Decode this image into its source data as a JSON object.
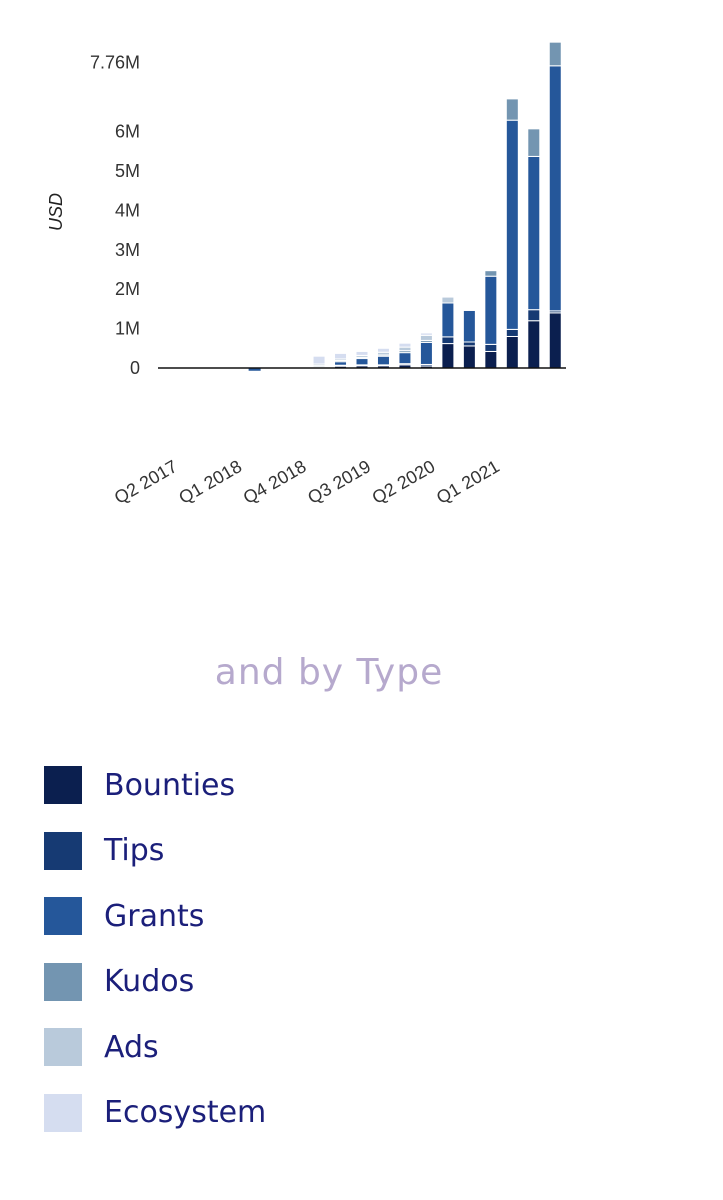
{
  "chart_data": {
    "type": "bar",
    "stacked": true,
    "ylabel": "USD",
    "yticks": [
      "0",
      "1M",
      "2M",
      "3M",
      "4M",
      "5M",
      "6M",
      "7.76M"
    ],
    "ytick_values": [
      0,
      1000000,
      2000000,
      3000000,
      4000000,
      5000000,
      6000000,
      7760000
    ],
    "ylim": [
      -100000,
      8400000
    ],
    "xtick_labels": [
      "Q2 2017",
      "Q1 2018",
      "Q4 2018",
      "Q3 2019",
      "Q2 2020",
      "Q1 2021"
    ],
    "xtick_every": 3,
    "categories": [
      "Q2 2017",
      "Q3 2017",
      "Q4 2017",
      "Q1 2018",
      "Q2 2018",
      "Q3 2018",
      "Q4 2018",
      "Q1 2019",
      "Q2 2019",
      "Q3 2019",
      "Q4 2019",
      "Q1 2020",
      "Q2 2020",
      "Q3 2020",
      "Q4 2020",
      "Q1 2021",
      "Q2 2021",
      "Q3 2021",
      "Q4 2021"
    ],
    "series": [
      {
        "name": "Bounties",
        "color": "#0b1f4f",
        "values": [
          0,
          0,
          0,
          0,
          10000,
          0,
          5000,
          20000,
          50000,
          60000,
          60000,
          80000,
          50000,
          620000,
          560000,
          420000,
          800000,
          1200000,
          1400000
        ]
      },
      {
        "name": "Tips",
        "color": "#163a73",
        "values": [
          0,
          0,
          0,
          5000,
          5000,
          0,
          5000,
          10000,
          20000,
          20000,
          20000,
          30000,
          40000,
          170000,
          100000,
          180000,
          180000,
          280000,
          50000
        ]
      },
      {
        "name": "Grants",
        "color": "#25579a",
        "values": [
          0,
          0,
          0,
          0,
          0,
          0,
          0,
          0,
          90000,
          160000,
          220000,
          280000,
          560000,
          860000,
          800000,
          1730000,
          5310000,
          3890000,
          6220000
        ]
      },
      {
        "name": "Kudos",
        "color": "#7395b1",
        "values": [
          0,
          0,
          0,
          15000,
          0,
          20000,
          25000,
          30000,
          30000,
          30000,
          30000,
          50000,
          50000,
          0,
          0,
          140000,
          540000,
          700000,
          600000
        ]
      },
      {
        "name": "Ads",
        "color": "#b9cadb",
        "values": [
          0,
          0,
          0,
          0,
          0,
          20000,
          30000,
          40000,
          40000,
          50000,
          70000,
          90000,
          130000,
          150000,
          0,
          0,
          0,
          0,
          0
        ]
      },
      {
        "name": "Ecosystem",
        "color": "#d5ddf0",
        "values": [
          0,
          0,
          0,
          0,
          0,
          0,
          10000,
          200000,
          140000,
          100000,
          100000,
          100000,
          60000,
          0,
          0,
          0,
          0,
          0,
          0
        ]
      }
    ],
    "negative_values": [
      0,
      0,
      0,
      0,
      -70000,
      0,
      0,
      0,
      0,
      0,
      0,
      0,
      0,
      0,
      0,
      0,
      0,
      0,
      0
    ],
    "legend": "bottom-left"
  },
  "legend_section": {
    "heading": "and by Type",
    "items": [
      {
        "label": "Bounties",
        "color": "#0b1f4f"
      },
      {
        "label": "Tips",
        "color": "#163a73"
      },
      {
        "label": "Grants",
        "color": "#25579a"
      },
      {
        "label": "Kudos",
        "color": "#7395b1"
      },
      {
        "label": "Ads",
        "color": "#b9cadb"
      },
      {
        "label": "Ecosystem",
        "color": "#d5ddf0"
      }
    ]
  }
}
